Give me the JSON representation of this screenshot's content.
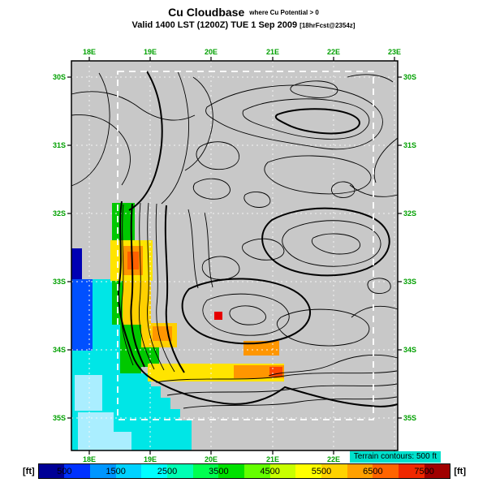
{
  "header": {
    "title": "Cu Cloudbase",
    "title_note": "where Cu Potential > 0",
    "valid_line": "Valid 1400 LST (1200Z) TUE 1 Sep 2009",
    "fcst_note": "[18hrFcst@2354z]"
  },
  "map": {
    "lon_labels": [
      "18E",
      "19E",
      "20E",
      "21E",
      "22E",
      "23E"
    ],
    "lat_labels": [
      "30S",
      "31S",
      "32S",
      "33S",
      "34S",
      "35S"
    ],
    "label_color": "#00a000",
    "background": "#c8c8c8",
    "inner_domain_color": "#ffffff",
    "note": "Terrain contours: 500 ft",
    "note_bg": "#00e0cc"
  },
  "colorbar": {
    "unit_left": "[ft]",
    "unit_right": "[ft]",
    "tick_values": [
      "500",
      "1500",
      "2500",
      "3500",
      "4500",
      "5500",
      "6500",
      "7500"
    ],
    "min": 0,
    "max": 8000,
    "colors": [
      "#000096",
      "#0032ff",
      "#0096ff",
      "#00d2ff",
      "#00ffff",
      "#00ffb4",
      "#00ff50",
      "#00e100",
      "#64ff00",
      "#c8ff00",
      "#ffff00",
      "#ffd200",
      "#ffa000",
      "#ff6400",
      "#f02800",
      "#a00000"
    ]
  },
  "field_colors": {
    "deep_blue": "#0000b4",
    "blue": "#0050ff",
    "cyan": "#00e6e6",
    "pale_blue": "#aaeeff",
    "green": "#00c800",
    "yellow": "#ffe400",
    "gold": "#ffd000",
    "orange": "#ff9600",
    "deep_orange": "#ff6000",
    "red_orange": "#ff4600",
    "red": "#e60000"
  },
  "chart_data": {
    "type": "heatmap",
    "title": "Cu Cloudbase",
    "units": "ft",
    "scale_ticks": [
      500,
      1500,
      2500,
      3500,
      4500,
      5500,
      6500,
      7500
    ],
    "scale_range": [
      0,
      8000
    ],
    "x_ticks": [
      "18E",
      "19E",
      "20E",
      "21E",
      "22E",
      "23E"
    ],
    "y_ticks": [
      "30S",
      "31S",
      "32S",
      "33S",
      "34S",
      "35S"
    ],
    "legend_note": "Terrain contours: 500 ft"
  }
}
